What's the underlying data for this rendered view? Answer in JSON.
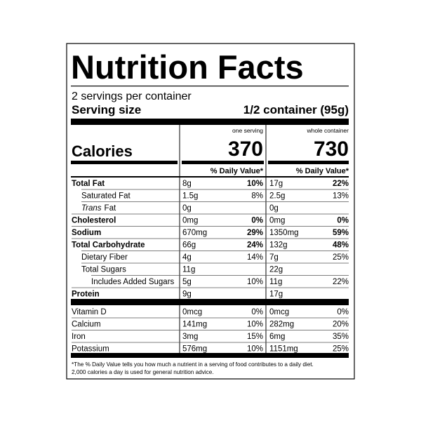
{
  "title": "Nutrition Facts",
  "servings": "2 servings per container",
  "serving_size": {
    "label": "Serving size",
    "value": "1/2 container (95g)"
  },
  "columns": [
    "one serving",
    "whole container"
  ],
  "calories": {
    "label": "Calories",
    "values": [
      "370",
      "730"
    ]
  },
  "dv_header": [
    "% Daily Value*",
    "% Daily Value*"
  ],
  "nutrients": [
    {
      "name": "Total Fat",
      "bold": true,
      "indent": 0,
      "cells": [
        [
          "8g",
          "10%"
        ],
        [
          "17g",
          "22%"
        ]
      ]
    },
    {
      "name": "Saturated Fat",
      "bold": false,
      "indent": 1,
      "cells": [
        [
          "1.5g",
          "8%"
        ],
        [
          "2.5g",
          "13%"
        ]
      ]
    },
    {
      "name": {
        "italic": "Trans",
        "text": "Fat"
      },
      "bold": false,
      "indent": 1,
      "cells": [
        [
          "0g",
          null
        ],
        [
          "0g",
          null
        ]
      ]
    },
    {
      "name": "Cholesterol",
      "bold": true,
      "indent": 0,
      "cells": [
        [
          "0mg",
          "0%"
        ],
        [
          "0mg",
          "0%"
        ]
      ]
    },
    {
      "name": "Sodium",
      "bold": true,
      "indent": 0,
      "cells": [
        [
          "670mg",
          "29%"
        ],
        [
          "1350mg",
          "59%"
        ]
      ]
    },
    {
      "name": "Total Carbohydrate",
      "bold": true,
      "indent": 0,
      "cells": [
        [
          "66g",
          "24%"
        ],
        [
          "132g",
          "48%"
        ]
      ]
    },
    {
      "name": "Dietary Fiber",
      "bold": false,
      "indent": 1,
      "cells": [
        [
          "4g",
          "14%"
        ],
        [
          "7g",
          "25%"
        ]
      ]
    },
    {
      "name": "Total Sugars",
      "bold": false,
      "indent": 1,
      "cells": [
        [
          "11g",
          null
        ],
        [
          "22g",
          null
        ]
      ]
    },
    {
      "name": "Includes Added Sugars",
      "bold": false,
      "indent": 2,
      "cells": [
        [
          "5g",
          "10%"
        ],
        [
          "11g",
          "22%"
        ]
      ]
    },
    {
      "name": "Protein",
      "bold": true,
      "indent": 0,
      "cells": [
        [
          "9g",
          null
        ],
        [
          "17g",
          null
        ]
      ]
    }
  ],
  "vitamins": [
    {
      "name": "Vitamin D",
      "cells": [
        [
          "0mcg",
          "0%"
        ],
        [
          "0mcg",
          "0%"
        ]
      ]
    },
    {
      "name": "Calcium",
      "cells": [
        [
          "141mg",
          "10%"
        ],
        [
          "282mg",
          "20%"
        ]
      ]
    },
    {
      "name": "Iron",
      "cells": [
        [
          "3mg",
          "15%"
        ],
        [
          "6mg",
          "35%"
        ]
      ]
    },
    {
      "name": "Potassium",
      "cells": [
        [
          "576mg",
          "10%"
        ],
        [
          "1151mg",
          "25%"
        ]
      ]
    }
  ],
  "footnote": [
    "*The % Daily Value tells you how much a nutrient in a serving of food contributes to a daily diet.",
    "2,000 calories a day is used for general nutrition advice."
  ]
}
